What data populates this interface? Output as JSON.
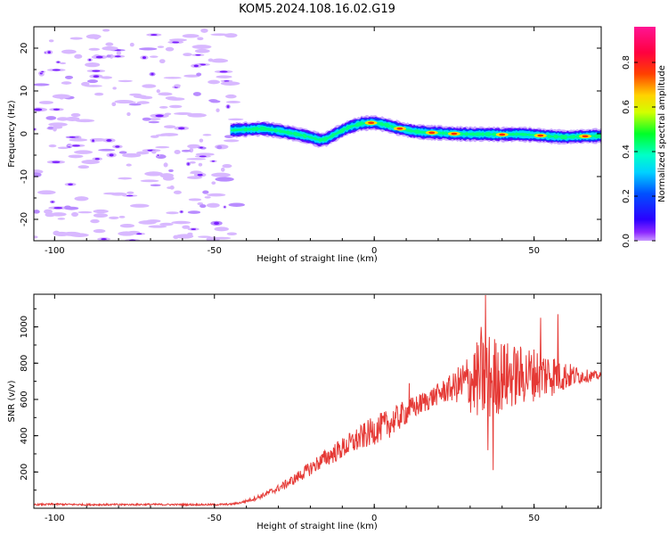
{
  "title": "KOM5.2024.108.16.02.G19",
  "chart_data": [
    {
      "type": "heatmap",
      "xlabel": "Height of straight line (km)",
      "ylabel": "Frequency (Hz)",
      "xlim": [
        -106.5,
        71
      ],
      "ylim": [
        -25,
        25
      ],
      "xticks": [
        -100,
        -50,
        0,
        50
      ],
      "yticks": [
        -20,
        -10,
        0,
        10,
        20
      ],
      "grid": false,
      "colorbar": {
        "label": "Normalized spectral amplitude",
        "ticks": [
          0.0,
          0.2,
          0.4,
          0.6,
          0.8
        ],
        "range": [
          0,
          0.96
        ],
        "colormap": "rainbow (magenta-blue-cyan-green-yellow-red-pink)"
      },
      "noise_region_x": [
        -106.5,
        -43
      ],
      "signal_trace": {
        "x": [
          -45,
          -40,
          -35,
          -30,
          -25,
          -20,
          -17,
          -15,
          -12,
          -8,
          -4,
          0,
          4,
          8,
          12,
          16,
          20,
          25,
          30,
          35,
          40,
          45,
          50,
          55,
          60,
          65,
          71
        ],
        "y": [
          0.8,
          1.0,
          1.2,
          0.7,
          0.0,
          -0.8,
          -1.5,
          -1.2,
          0.0,
          1.5,
          2.4,
          2.6,
          2.0,
          1.2,
          0.6,
          0.3,
          0.2,
          0.0,
          -0.1,
          -0.1,
          -0.2,
          -0.1,
          -0.3,
          -0.6,
          -0.8,
          -0.6,
          -0.5
        ],
        "peak_x": [
          -1,
          8,
          18,
          25,
          40,
          52,
          66
        ]
      }
    },
    {
      "type": "line",
      "xlabel": "Height of straight line (km)",
      "ylabel": "SNR (v/v)",
      "xlim": [
        -106.5,
        71
      ],
      "ylim": [
        0,
        1180
      ],
      "xticks": [
        -100,
        -50,
        0,
        50
      ],
      "yticks": [
        200,
        400,
        600,
        800,
        1000
      ],
      "grid": false,
      "color": "#e53935",
      "series": [
        {
          "x": [
            -106.5,
            -100,
            -90,
            -80,
            -70,
            -60,
            -50,
            -45,
            -42,
            -38,
            -35,
            -30,
            -25,
            -20,
            -15,
            -10,
            -5,
            0,
            5,
            10,
            15,
            20,
            25,
            30,
            35,
            40,
            45,
            50,
            55,
            60,
            65,
            71
          ],
          "values": [
            20,
            22,
            20,
            20,
            21,
            20,
            20,
            22,
            30,
            50,
            70,
            110,
            160,
            220,
            280,
            330,
            380,
            430,
            470,
            530,
            580,
            630,
            670,
            700,
            720,
            730,
            730,
            740,
            740,
            730,
            730,
            730
          ],
          "noise": [
            5,
            5,
            5,
            5,
            5,
            5,
            5,
            5,
            6,
            10,
            15,
            20,
            30,
            40,
            50,
            60,
            70,
            80,
            80,
            70,
            60,
            60,
            80,
            180,
            260,
            200,
            170,
            150,
            130,
            80,
            40,
            20
          ],
          "spikes": [
            {
              "x": 34.8,
              "y": 1175
            },
            {
              "x": 33.5,
              "y": 1000
            },
            {
              "x": 35.6,
              "y": 320
            },
            {
              "x": 37.2,
              "y": 210
            },
            {
              "x": 52,
              "y": 1050
            },
            {
              "x": 57.5,
              "y": 1070
            },
            {
              "x": 11,
              "y": 690
            }
          ]
        }
      ]
    }
  ]
}
